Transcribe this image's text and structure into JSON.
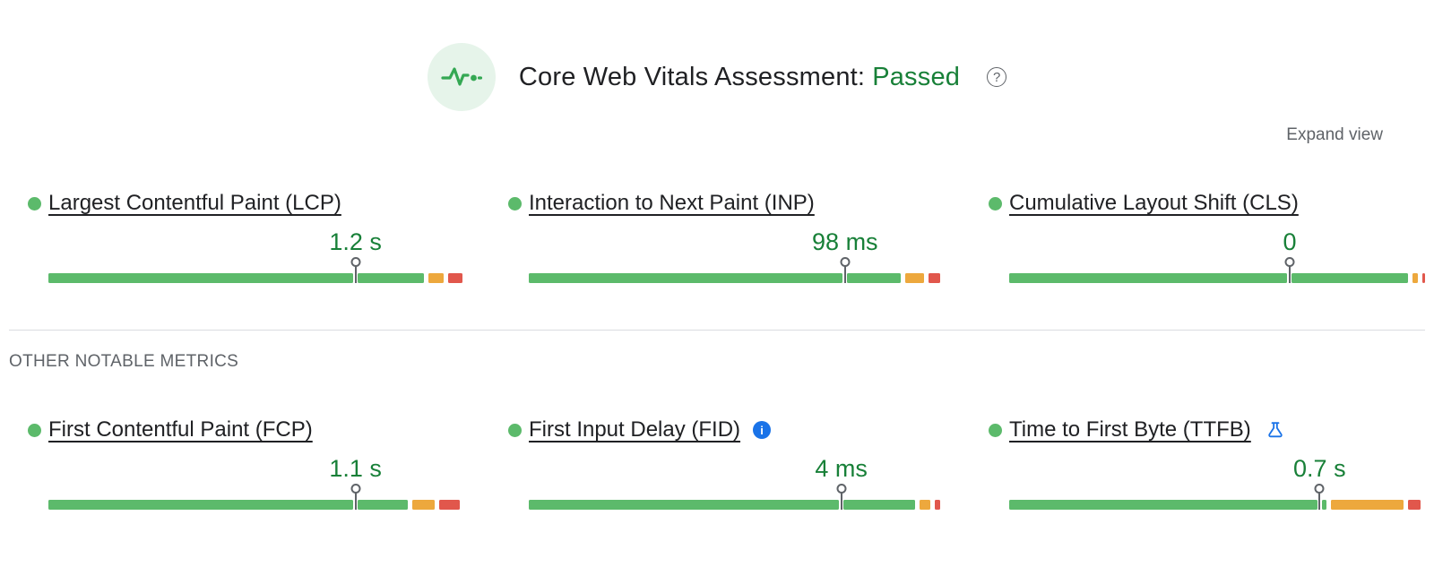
{
  "header": {
    "title": "Core Web Vitals Assessment:",
    "status": "Passed"
  },
  "expand_view_label": "Expand view",
  "section_label": "OTHER NOTABLE METRICS",
  "colors": {
    "good": "#5cba6b",
    "ni": "#eda83d",
    "poor": "#e1574c",
    "value_green": "#188038",
    "passed_green": "#188038",
    "text_dark": "#202124",
    "text_muted": "#5f6368",
    "divider": "#dadce0",
    "pulse_bg": "#e6f4ea",
    "pulse_green": "#34a853",
    "info_blue": "#1a73e8",
    "pin_gray": "#5f6368"
  },
  "core_metrics": [
    {
      "name": "Largest Contentful Paint (LCP)",
      "value": "1.2 s",
      "pin_percent": 74.0,
      "segments": [
        {
          "color": "good",
          "percent": 73.5
        },
        {
          "color": "good",
          "percent": 16.0
        },
        {
          "color": "ni",
          "percent": 3.5
        },
        {
          "color": "poor",
          "percent": 3.5
        }
      ]
    },
    {
      "name": "Interaction to Next Paint (INP)",
      "value": "98 ms",
      "pin_percent": 76.2,
      "segments": [
        {
          "color": "good",
          "percent": 75.5
        },
        {
          "color": "good",
          "percent": 13.0
        },
        {
          "color": "ni",
          "percent": 4.5
        },
        {
          "color": "poor",
          "percent": 3.0
        }
      ]
    },
    {
      "name": "Cumulative Layout Shift (CLS)",
      "value": "0",
      "pin_percent": 67.6,
      "segments": [
        {
          "color": "good",
          "percent": 67.0
        },
        {
          "color": "good",
          "percent": 28.0
        },
        {
          "color": "ni",
          "percent": 1.3
        },
        {
          "color": "poor",
          "percent": 0.6
        }
      ]
    }
  ],
  "other_metrics": [
    {
      "name": "First Contentful Paint (FCP)",
      "value": "1.1 s",
      "pin_percent": 74.0,
      "badge": null,
      "segments": [
        {
          "color": "good",
          "percent": 73.5
        },
        {
          "color": "good",
          "percent": 12.0
        },
        {
          "color": "ni",
          "percent": 5.5
        },
        {
          "color": "poor",
          "percent": 4.8
        }
      ]
    },
    {
      "name": "First Input Delay (FID)",
      "value": "4 ms",
      "pin_percent": 75.3,
      "badge": "info",
      "segments": [
        {
          "color": "good",
          "percent": 74.7
        },
        {
          "color": "good",
          "percent": 17.3
        },
        {
          "color": "ni",
          "percent": 2.5
        },
        {
          "color": "poor",
          "percent": 1.5
        }
      ]
    },
    {
      "name": "Time to First Byte (TTFB)",
      "value": "0.7 s",
      "pin_percent": 74.8,
      "badge": "flask",
      "segments": [
        {
          "color": "good",
          "percent": 74.2
        },
        {
          "color": "good",
          "percent": 1.2
        },
        {
          "color": "ni",
          "percent": 17.4
        },
        {
          "color": "poor",
          "percent": 3.2
        }
      ]
    }
  ]
}
